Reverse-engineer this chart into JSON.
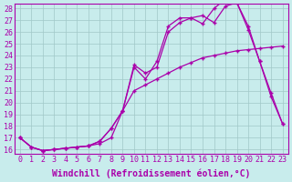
{
  "xlabel": "Windchill (Refroidissement éolien,°C)",
  "background_color": "#c8ecec",
  "grid_color": "#a0c8c8",
  "line_color": "#aa00aa",
  "x_min": 0,
  "x_max": 23,
  "y_min": 16,
  "y_max": 28,
  "line1_x": [
    0,
    1,
    2,
    3,
    4,
    5,
    6,
    7,
    8,
    9,
    10,
    11,
    12,
    13,
    14,
    15,
    16,
    17,
    18,
    19,
    20,
    21,
    22,
    23
  ],
  "line1_y": [
    17.0,
    16.2,
    15.9,
    16.0,
    16.1,
    16.2,
    16.3,
    16.5,
    17.0,
    19.3,
    21.0,
    21.5,
    22.0,
    22.5,
    23.0,
    23.4,
    23.8,
    24.0,
    24.2,
    24.4,
    24.5,
    24.6,
    24.7,
    24.8
  ],
  "line2_x": [
    0,
    1,
    2,
    3,
    4,
    5,
    6,
    7,
    8,
    9,
    10,
    11,
    12,
    13,
    14,
    15,
    16,
    17,
    18,
    19,
    20,
    21,
    22,
    23
  ],
  "line2_y": [
    17.0,
    16.2,
    15.9,
    16.0,
    16.1,
    16.2,
    16.3,
    16.7,
    17.8,
    19.3,
    23.2,
    22.5,
    23.0,
    26.0,
    26.8,
    27.2,
    27.4,
    26.8,
    28.2,
    28.5,
    26.2,
    23.5,
    20.8,
    18.2
  ],
  "line3_x": [
    0,
    1,
    2,
    3,
    4,
    5,
    6,
    7,
    8,
    9,
    10,
    11,
    12,
    13,
    14,
    15,
    16,
    17,
    18,
    19,
    20,
    21,
    22,
    23
  ],
  "line3_y": [
    17.0,
    16.2,
    15.9,
    16.0,
    16.1,
    16.2,
    16.3,
    16.7,
    17.8,
    19.3,
    23.0,
    22.0,
    23.5,
    26.5,
    27.2,
    27.2,
    26.7,
    28.0,
    28.8,
    28.5,
    26.5,
    23.5,
    20.5,
    18.2
  ],
  "xtick_vals": [
    0,
    1,
    2,
    3,
    4,
    5,
    6,
    7,
    8,
    9,
    10,
    11,
    12,
    13,
    14,
    15,
    16,
    17,
    18,
    19,
    20,
    21,
    22,
    23
  ],
  "xtick_labels": [
    "0",
    "1",
    "2",
    "3",
    "4",
    "5",
    "6",
    "7",
    "8",
    "9",
    "10",
    "11",
    "12",
    "13",
    "14",
    "15",
    "16",
    "17",
    "18",
    "19",
    "20",
    "21",
    "22",
    "23"
  ],
  "ytick_vals": [
    16,
    17,
    18,
    19,
    20,
    21,
    22,
    23,
    24,
    25,
    26,
    27,
    28
  ],
  "ytick_labels": [
    "16",
    "17",
    "18",
    "19",
    "20",
    "21",
    "22",
    "23",
    "24",
    "25",
    "26",
    "27",
    "28"
  ],
  "font_size": 6,
  "marker": "+"
}
